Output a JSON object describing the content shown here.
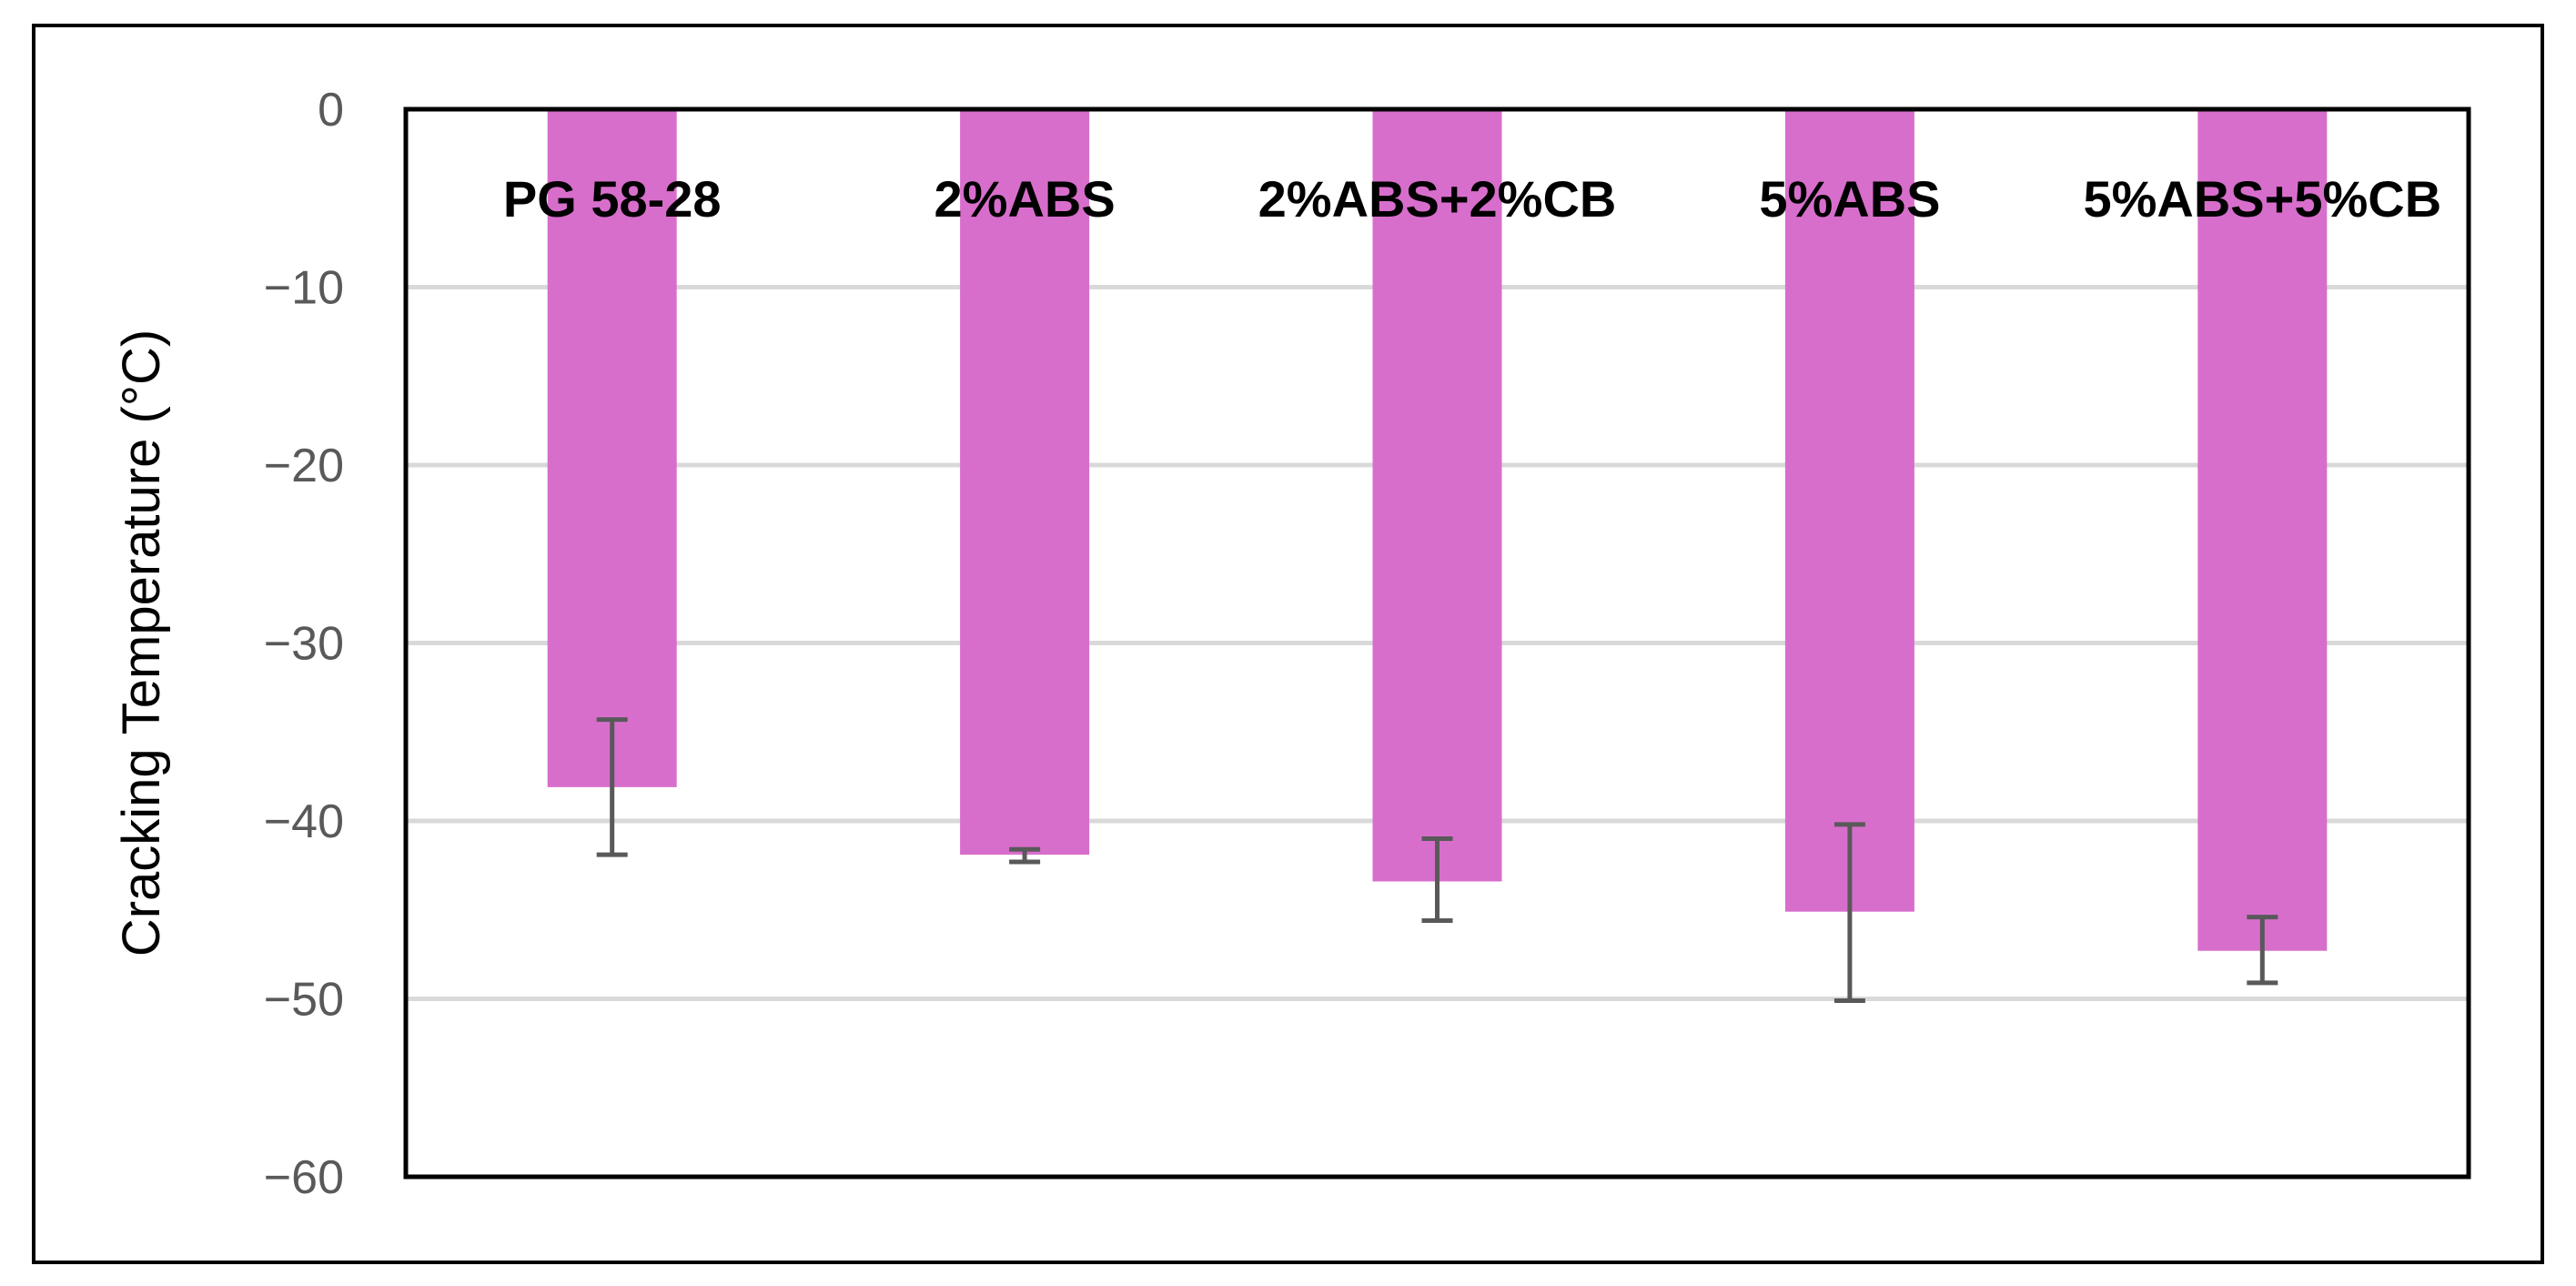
{
  "chart_data": {
    "type": "bar",
    "categories": [
      "PG 58-28",
      "2%ABS",
      "2%ABS+2%CB",
      "5%ABS",
      "5%ABS+5%CB"
    ],
    "values": [
      -38.1,
      -41.9,
      -43.4,
      -45.1,
      -47.3
    ],
    "error_low": [
      -41.9,
      -42.3,
      -45.6,
      -50.1,
      -49.1
    ],
    "error_high": [
      -34.3,
      -41.6,
      -41.0,
      -40.2,
      -45.4
    ],
    "ylabel": "Cracking Temperature (°C)",
    "xlabel": "",
    "title": "",
    "ylim": [
      -60,
      0
    ],
    "yticks": [
      0,
      -10,
      -20,
      -30,
      -40,
      -50,
      -60
    ],
    "ytick_labels": [
      "0",
      "−10",
      "−20",
      "−30",
      "−40",
      "−50",
      "−60"
    ],
    "grid": "horizontal",
    "category_label_position": "top",
    "colors": {
      "bar": "#D86ECC",
      "errorbar": "#595959",
      "grid": "#D9D9D9",
      "axis": "#000000",
      "tick_text": "#595959"
    }
  }
}
